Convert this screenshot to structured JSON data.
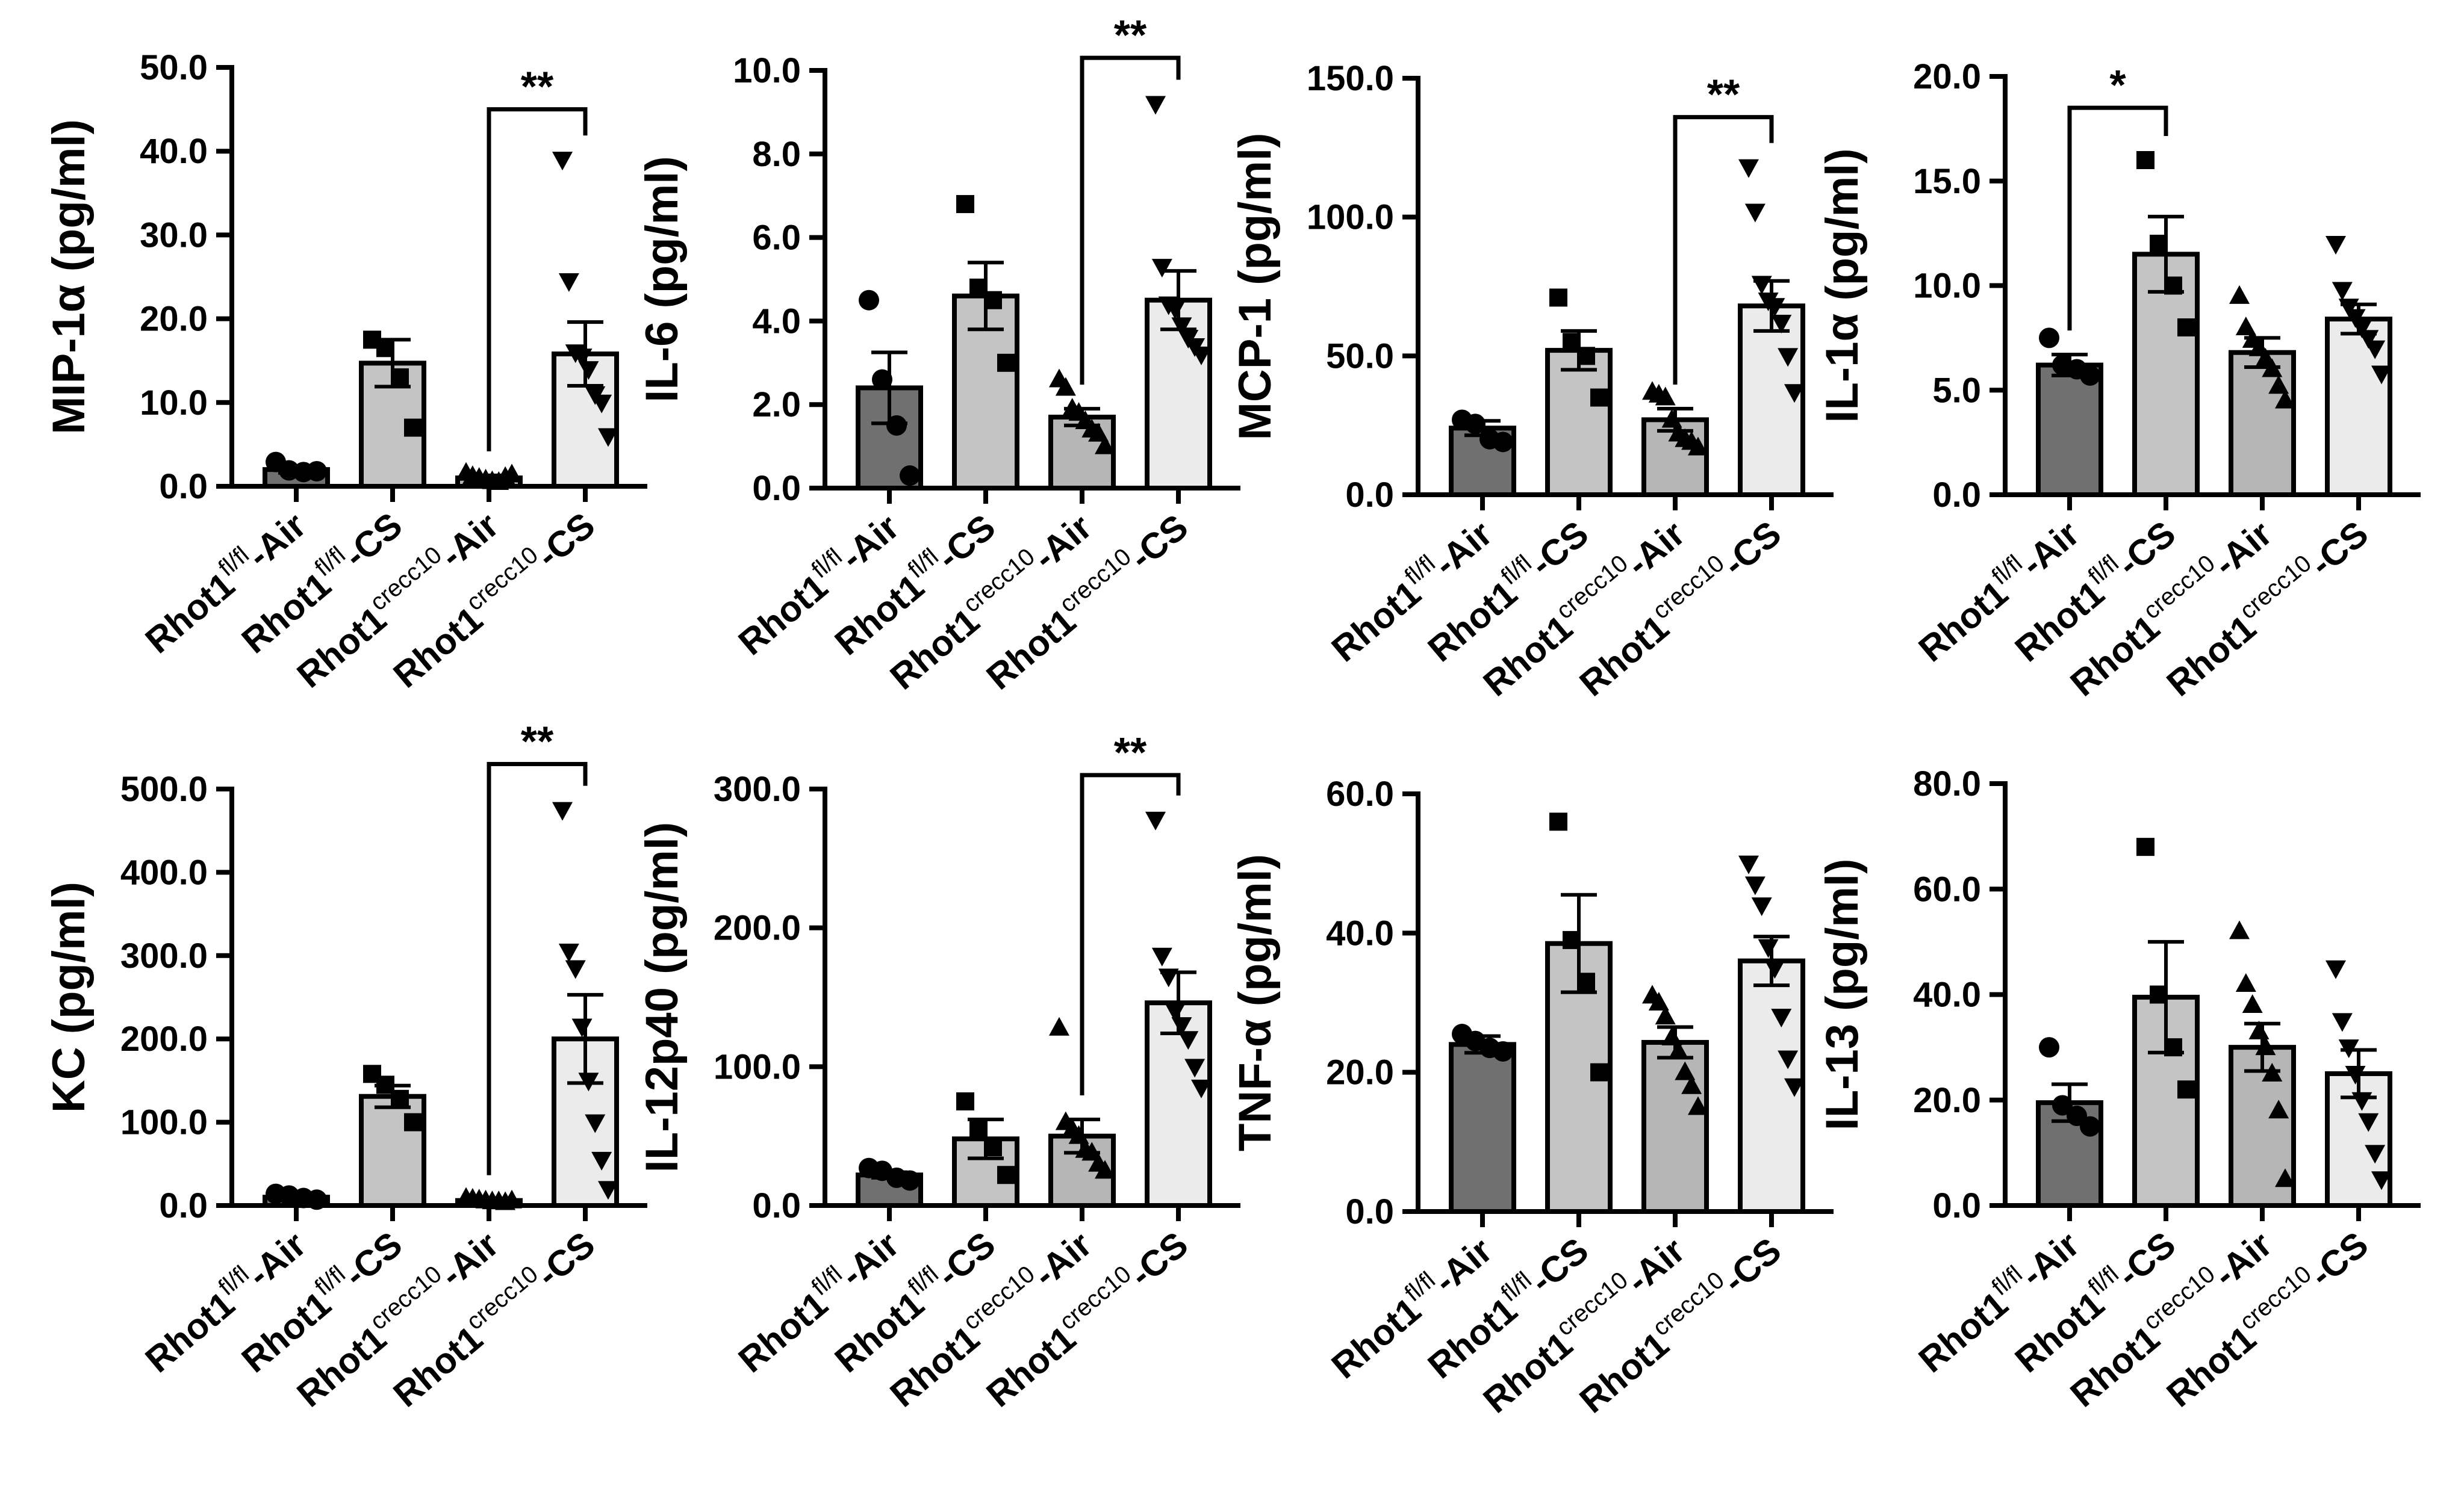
{
  "figure": {
    "groups": [
      {
        "name": "Rhot1",
        "sup": "fl/fl",
        "suffix": "-Air"
      },
      {
        "name": "Rhot1",
        "sup": "fl/fl",
        "suffix": "-CS"
      },
      {
        "name": "Rhot1",
        "sup": "crecc10",
        "suffix": "-Air"
      },
      {
        "name": "Rhot1",
        "sup": "crecc10",
        "suffix": "-CS"
      }
    ],
    "colors": {
      "bars": [
        "#707070",
        "#c4c4c4",
        "#b6b6b6",
        "#ebebeb"
      ],
      "ink": "#000000"
    }
  },
  "chart_data": [
    {
      "type": "bar",
      "title": "",
      "ylabel": "MIP-1α (pg/ml)",
      "xlabel": "",
      "ylim": [
        0,
        50
      ],
      "ticks": [
        0,
        10,
        20,
        30,
        40,
        50
      ],
      "tick_labels": [
        "0.0",
        "10.0",
        "20.0",
        "30.0",
        "40.0",
        "50.0"
      ],
      "means": [
        2.0,
        14.7,
        1.0,
        15.8
      ],
      "sem": [
        0.4,
        2.8,
        0.3,
        3.8
      ],
      "points": [
        [
          2.9,
          1.9,
          1.7,
          1.8
        ],
        [
          17.5,
          16.5,
          13.0,
          7.0
        ],
        [
          1.6,
          1.2,
          1.0,
          0.8,
          0.6,
          0.5,
          1.1,
          1.4
        ],
        [
          39.0,
          24.5,
          16.0,
          15.5,
          14.0,
          11.0,
          10.0,
          6.0
        ]
      ],
      "sig": [
        {
          "from": 2,
          "to": 3,
          "label": "**",
          "y": 45
        }
      ]
    },
    {
      "type": "bar",
      "title": "",
      "ylabel": "IL-6 (pg/ml)",
      "xlabel": "",
      "ylim": [
        0,
        10
      ],
      "ticks": [
        0,
        2,
        4,
        6,
        8,
        10
      ],
      "tick_labels": [
        "0.0",
        "2.0",
        "4.0",
        "6.0",
        "8.0",
        "10.0"
      ],
      "means": [
        2.4,
        4.6,
        1.7,
        4.5
      ],
      "sem": [
        0.85,
        0.8,
        0.2,
        0.7
      ],
      "points": [
        [
          4.5,
          2.6,
          1.5,
          0.3
        ],
        [
          6.8,
          4.8,
          4.5,
          3.0
        ],
        [
          2.6,
          2.4,
          1.9,
          1.8,
          1.6,
          1.4,
          1.3,
          1.0
        ],
        [
          9.2,
          5.3,
          4.4,
          4.3,
          3.9,
          3.6,
          3.4,
          3.2
        ]
      ],
      "sig": [
        {
          "from": 2,
          "to": 3,
          "label": "**",
          "y": 10.3
        }
      ]
    },
    {
      "type": "bar",
      "title": "",
      "ylabel": "MCP-1 (pg/ml)",
      "xlabel": "",
      "ylim": [
        0,
        150
      ],
      "ticks": [
        0,
        50,
        100,
        150
      ],
      "tick_labels": [
        "0.0",
        "50.0",
        "100.0",
        "150.0"
      ],
      "means": [
        24.0,
        52.0,
        27.0,
        68.0
      ],
      "sem": [
        2.6,
        7.0,
        4.0,
        9.0
      ],
      "points": [
        [
          27.0,
          25.5,
          20.0,
          19.0
        ],
        [
          71.0,
          55.0,
          50.0,
          35.0
        ],
        [
          37.0,
          36.0,
          35.0,
          27.0,
          22.0,
          20.0,
          19.0,
          17.0
        ],
        [
          118.0,
          102.0,
          76.0,
          70.0,
          68.0,
          62.0,
          50.0,
          37.0
        ]
      ],
      "sig": [
        {
          "from": 2,
          "to": 3,
          "label": "**",
          "y": 136
        }
      ]
    },
    {
      "type": "bar",
      "title": "",
      "ylabel": "IL-1α (pg/ml)",
      "xlabel": "",
      "ylim": [
        0,
        20
      ],
      "ticks": [
        0,
        5,
        10,
        15,
        20
      ],
      "tick_labels": [
        "0.0",
        "5.0",
        "10.0",
        "15.0",
        "20.0"
      ],
      "means": [
        6.2,
        11.5,
        6.8,
        8.4
      ],
      "sem": [
        0.5,
        1.8,
        0.7,
        0.7
      ],
      "points": [
        [
          7.5,
          6.2,
          6.0,
          5.7
        ],
        [
          16.0,
          12.0,
          10.0,
          8.0
        ],
        [
          9.5,
          8.0,
          7.4,
          7.0,
          6.5,
          6.0,
          5.2,
          4.5
        ],
        [
          12.0,
          9.8,
          9.0,
          8.5,
          8.0,
          7.5,
          7.0,
          5.8
        ]
      ],
      "sig": [
        {
          "from": 0,
          "to": 1,
          "label": "*",
          "y": 18.5
        }
      ]
    },
    {
      "type": "bar",
      "title": "",
      "ylabel": "KC (pg/ml)",
      "xlabel": "",
      "ylim": [
        0,
        500
      ],
      "ticks": [
        0,
        100,
        200,
        300,
        400,
        500
      ],
      "tick_labels": [
        "0.0",
        "100.0",
        "200.0",
        "300.0",
        "400.0",
        "500.0"
      ],
      "means": [
        10.0,
        131.0,
        6.0,
        200.0
      ],
      "sem": [
        2.0,
        13.0,
        1.5,
        53.0
      ],
      "points": [
        [
          14.0,
          12.0,
          9.0,
          7.0
        ],
        [
          158.0,
          145.0,
          128.0,
          100.0
        ],
        [
          9.0,
          8.0,
          7.0,
          6.0,
          5.0,
          5.0,
          4.0,
          6.0
        ],
        [
          475.0,
          305.0,
          285.0,
          215.0,
          150.0,
          100.0,
          55.0,
          20.0
        ]
      ],
      "sig": [
        {
          "from": 2,
          "to": 3,
          "label": "**",
          "y": 530
        }
      ]
    },
    {
      "type": "bar",
      "title": "",
      "ylabel": "IL-12p40 (pg/ml)",
      "xlabel": "",
      "ylim": [
        0,
        300
      ],
      "ticks": [
        0,
        100,
        200,
        300
      ],
      "tick_labels": [
        "0.0",
        "100.0",
        "200.0",
        "300.0"
      ],
      "means": [
        22.0,
        48.0,
        50.0,
        146.0
      ],
      "sem": [
        2.0,
        14.0,
        12.0,
        22.0
      ],
      "points": [
        [
          27.0,
          25.0,
          20.0,
          18.0
        ],
        [
          75.0,
          55.0,
          42.0,
          22.0
        ],
        [
          128.0,
          60.0,
          55.0,
          50.0,
          40.0,
          38.0,
          30.0,
          25.0
        ],
        [
          278.0,
          180.0,
          165.0,
          140.0,
          130.0,
          120.0,
          100.0,
          85.0
        ]
      ],
      "sig": [
        {
          "from": 2,
          "to": 3,
          "label": "**",
          "y": 310
        }
      ]
    },
    {
      "type": "bar",
      "title": "",
      "ylabel": "TNF-α (pg/ml)",
      "xlabel": "",
      "ylim": [
        0,
        60
      ],
      "ticks": [
        0,
        20,
        40,
        60
      ],
      "tick_labels": [
        "0.0",
        "20.0",
        "40.0",
        "60.0"
      ],
      "means": [
        24.0,
        38.5,
        24.3,
        36.0
      ],
      "sem": [
        1.2,
        7.0,
        2.2,
        3.5
      ],
      "points": [
        [
          25.5,
          24.5,
          23.5,
          23.0
        ],
        [
          56.0,
          39.0,
          33.0,
          20.0
        ],
        [
          31.0,
          30.0,
          28.0,
          25.0,
          23.0,
          20.0,
          18.0,
          15.0
        ],
        [
          50.0,
          47.0,
          44.0,
          38.0,
          35.0,
          28.0,
          22.0,
          18.0
        ]
      ],
      "sig": []
    },
    {
      "type": "bar",
      "title": "",
      "ylabel": "IL-13 (pg/ml)",
      "xlabel": "",
      "ylim": [
        0,
        80
      ],
      "ticks": [
        0,
        20,
        40,
        60,
        80
      ],
      "tick_labels": [
        "0.0",
        "20.0",
        "40.0",
        "60.0",
        "80.0"
      ],
      "means": [
        19.5,
        39.5,
        30.0,
        25.0
      ],
      "sem": [
        3.5,
        10.5,
        4.5,
        4.5
      ],
      "points": [
        [
          30.0,
          19.0,
          17.0,
          15.0
        ],
        [
          68.0,
          40.0,
          30.0,
          22.0
        ],
        [
          52.0,
          42.0,
          38.0,
          33.0,
          30.0,
          25.0,
          18.0,
          5.0
        ],
        [
          45.0,
          35.0,
          30.0,
          25.0,
          20.0,
          16.0,
          10.0,
          5.0
        ]
      ],
      "sig": []
    }
  ]
}
